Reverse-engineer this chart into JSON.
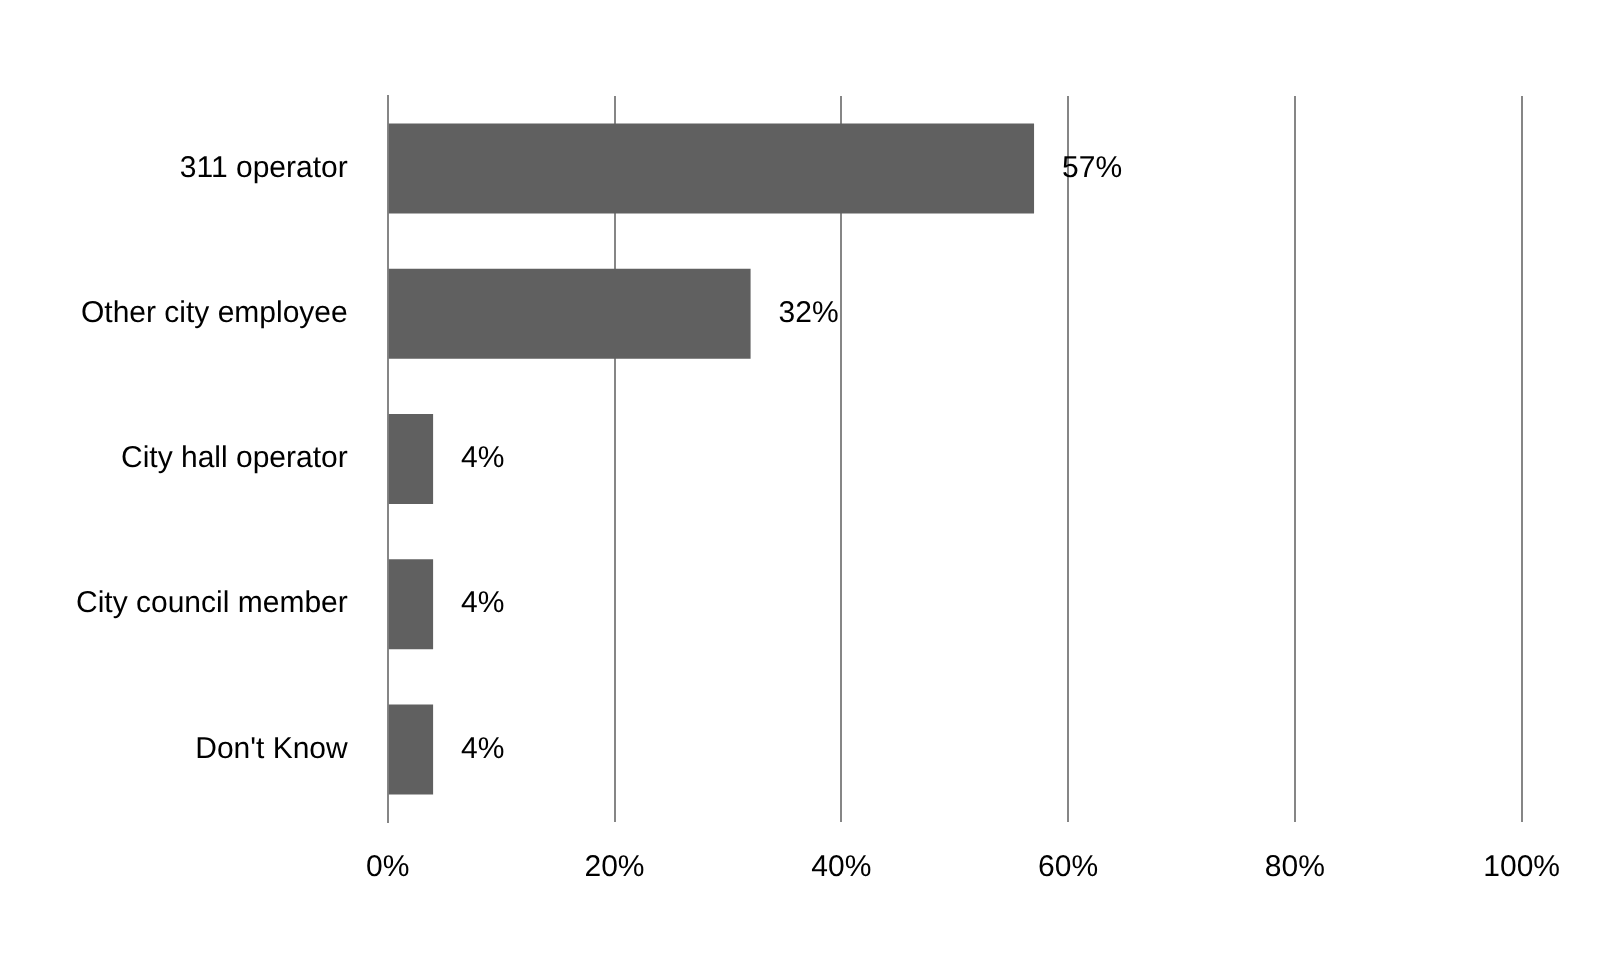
{
  "chart_data": {
    "type": "bar",
    "orientation": "horizontal",
    "categories": [
      "311 operator",
      "Other city employee",
      "City hall operator",
      "City council member",
      "Don't Know"
    ],
    "values": [
      57,
      32,
      4,
      4,
      4
    ],
    "value_labels": [
      "57%",
      "32%",
      "4%",
      "4%",
      "4%"
    ],
    "color": "#606060",
    "xlim": [
      0,
      100
    ],
    "xticks": [
      {
        "value": 0,
        "label": "0%"
      },
      {
        "value": 20,
        "label": "20%"
      },
      {
        "value": 40,
        "label": "40%"
      },
      {
        "value": 60,
        "label": "60%"
      },
      {
        "value": 80,
        "label": "80%"
      },
      {
        "value": 100,
        "label": "100%"
      }
    ],
    "grid": "x",
    "legend": false
  }
}
